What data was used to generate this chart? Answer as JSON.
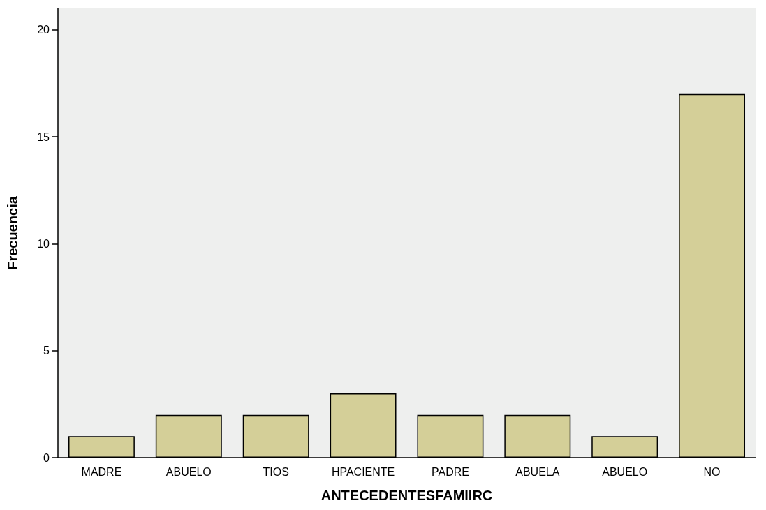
{
  "chart_data": {
    "type": "bar",
    "xlabel": "ANTECEDENTESFAMIIRC",
    "ylabel": "Frecuencia",
    "categories": [
      "MADRE",
      "ABUELO",
      "TIOS",
      "HPACIENTE",
      "PADRE",
      "ABUELA",
      "ABUELO",
      "NO"
    ],
    "values": [
      1,
      2,
      2,
      3,
      2,
      2,
      1,
      17
    ],
    "color": "#d4cf98",
    "ylim": [
      0,
      21
    ],
    "yticks": [
      0,
      5,
      10,
      15,
      20
    ],
    "grid": false
  }
}
